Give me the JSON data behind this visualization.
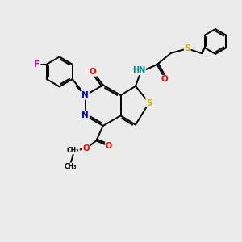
{
  "background_color": "#ebebeb",
  "bond_color": "#000000",
  "atom_colors": {
    "N": "#0000cc",
    "O": "#ff0000",
    "S": "#ccaa00",
    "F": "#cc00cc",
    "HN": "#008888",
    "C": "#000000"
  },
  "figsize": [
    3.0,
    3.0
  ],
  "dpi": 100
}
